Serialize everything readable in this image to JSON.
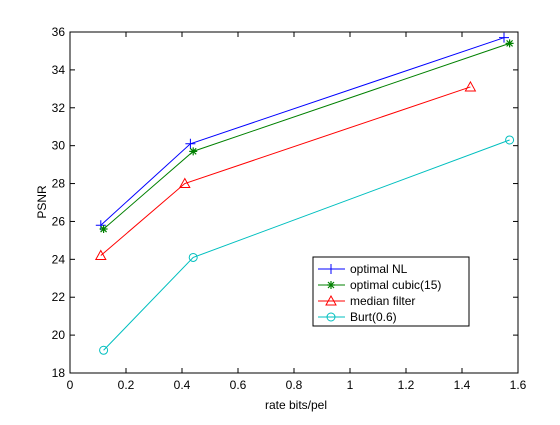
{
  "chart_data": {
    "type": "line",
    "title": "",
    "xlabel": "rate  bits/pel",
    "ylabel": "PSNR",
    "xlim": [
      0,
      1.6
    ],
    "ylim": [
      18,
      36
    ],
    "xticks": [
      0,
      0.2,
      0.4,
      0.6,
      0.8,
      1,
      1.2,
      1.4,
      1.6
    ],
    "xtick_labels": [
      "0",
      "0.2",
      "0.4",
      "0.6",
      "0.8",
      "1",
      "1.2",
      "1.4",
      "1.6"
    ],
    "yticks": [
      18,
      20,
      22,
      24,
      26,
      28,
      30,
      32,
      34,
      36
    ],
    "ytick_labels": [
      "18",
      "20",
      "22",
      "24",
      "26",
      "28",
      "30",
      "32",
      "34",
      "36"
    ],
    "grid": false,
    "legend_position": "lower-right",
    "series": [
      {
        "name": "optimal NL",
        "color": "#0000ff",
        "marker": "plus",
        "x": [
          0.11,
          0.43,
          1.55
        ],
        "y": [
          25.8,
          30.1,
          35.7
        ]
      },
      {
        "name": "optimal cubic(15)",
        "color": "#008000",
        "marker": "star",
        "x": [
          0.12,
          0.44,
          1.57
        ],
        "y": [
          25.6,
          29.7,
          35.4
        ]
      },
      {
        "name": "median filter",
        "color": "#ff0000",
        "marker": "triangle",
        "x": [
          0.11,
          0.41,
          1.43
        ],
        "y": [
          24.2,
          28.0,
          33.1
        ]
      },
      {
        "name": "Burt(0.6)",
        "color": "#00bfbf",
        "marker": "circle",
        "x": [
          0.12,
          0.44,
          1.57
        ],
        "y": [
          19.2,
          24.1,
          30.3
        ]
      }
    ]
  }
}
